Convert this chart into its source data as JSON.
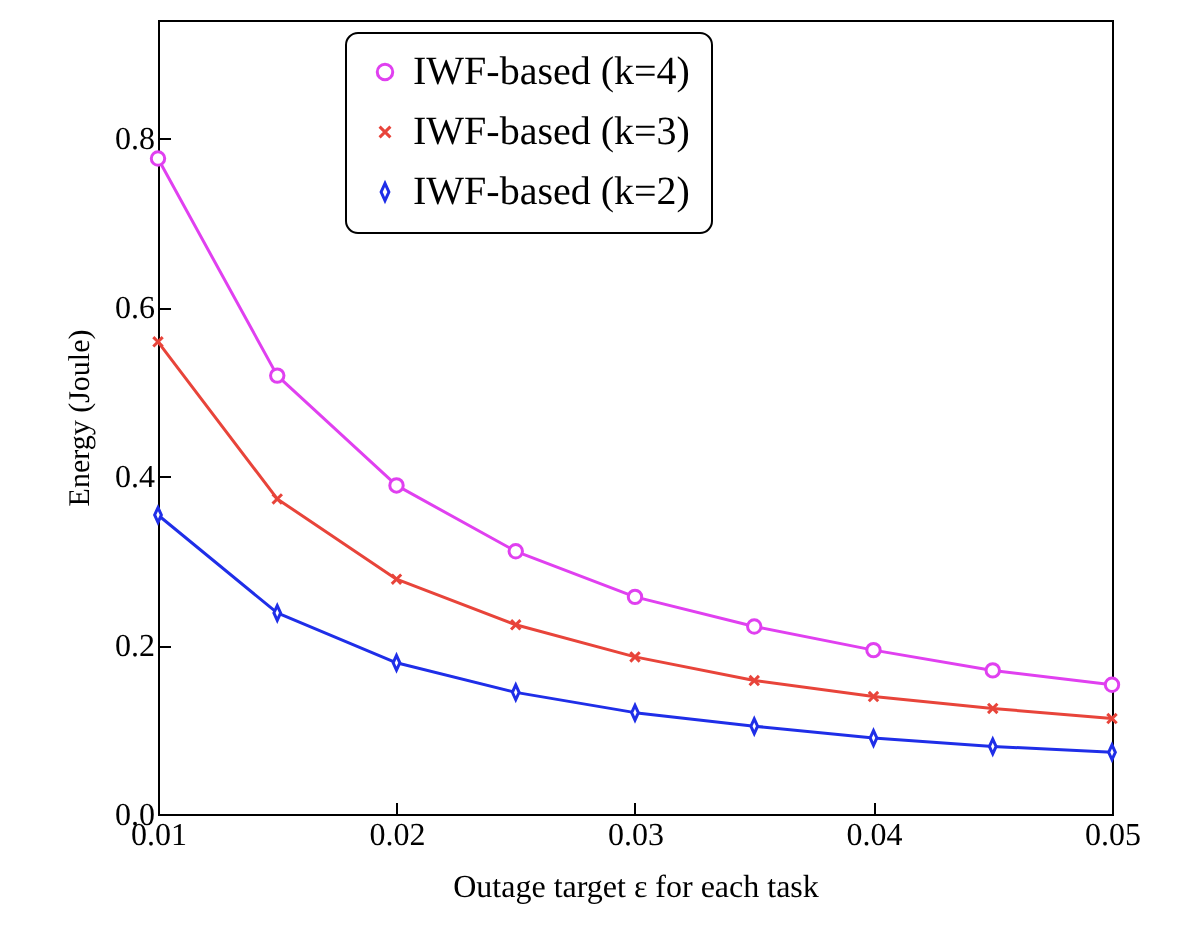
{
  "chart_data": {
    "type": "line",
    "xlabel": "Outage target ε for each task",
    "ylabel": "Energy (Joule)",
    "x": [
      0.01,
      0.015,
      0.02,
      0.025,
      0.03,
      0.035,
      0.04,
      0.045,
      0.05
    ],
    "series": [
      {
        "name": "IWF-based (k=4)",
        "color": "#e040f0",
        "marker": "circle",
        "values": [
          0.776,
          0.519,
          0.389,
          0.311,
          0.257,
          0.222,
          0.194,
          0.17,
          0.153
        ]
      },
      {
        "name": "IWF-based (k=3)",
        "color": "#e8443a",
        "marker": "cross",
        "values": [
          0.559,
          0.373,
          0.278,
          0.224,
          0.186,
          0.158,
          0.139,
          0.125,
          0.113
        ]
      },
      {
        "name": "IWF-based (k=2)",
        "color": "#1f2ee8",
        "marker": "diamond",
        "values": [
          0.354,
          0.238,
          0.179,
          0.144,
          0.12,
          0.104,
          0.09,
          0.08,
          0.073
        ]
      }
    ],
    "xlim": [
      0.01,
      0.05
    ],
    "xticks": [
      0.01,
      0.02,
      0.03,
      0.04,
      0.05
    ],
    "ylim": [
      0,
      0.94
    ],
    "yticks": [
      {
        "value": 0,
        "label": "0.0"
      },
      0.2,
      0.4,
      0.6,
      0.8
    ],
    "grid": false,
    "legend": "top",
    "line_style": "solid"
  }
}
